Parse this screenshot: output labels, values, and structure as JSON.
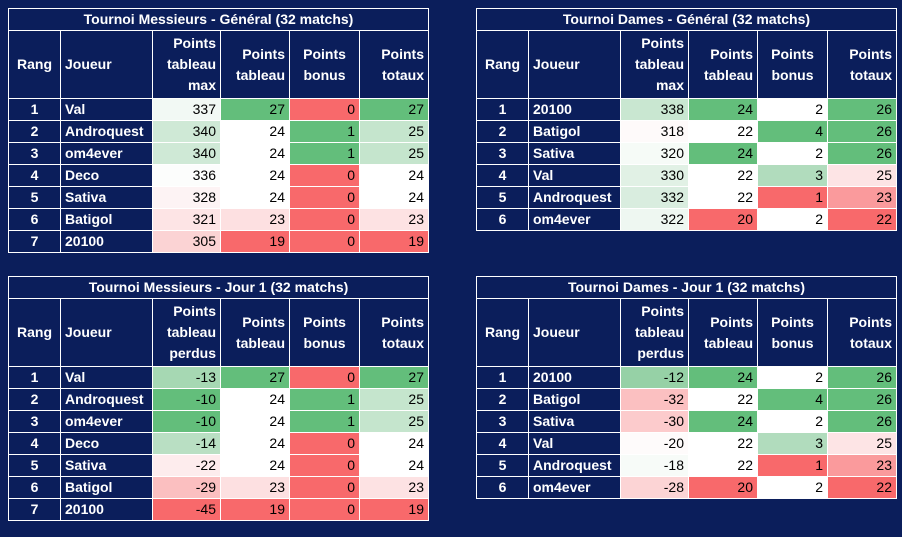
{
  "colors": {
    "background": "#0b1e5b",
    "good_strong": "#63be7b",
    "bad_strong": "#f8696b",
    "neutral": "#ffffff"
  },
  "headers": {
    "rank": "Rang",
    "player": "Joueur",
    "col_a_general": [
      "Points",
      "tableau",
      "max"
    ],
    "col_a_jour": [
      "Points",
      "tableau",
      "perdus"
    ],
    "col_b": [
      "Points",
      "tableau"
    ],
    "col_c": [
      "Points",
      "bonus"
    ],
    "col_d": [
      "Points",
      "totaux"
    ]
  },
  "tables": [
    {
      "id": "m-gen",
      "title": "Tournoi Messieurs - Général (32 matchs)",
      "col_a_kind": "general",
      "rows": [
        {
          "rank": "1",
          "player": "Val",
          "a": "337",
          "b": "27",
          "c": "0",
          "d": "27",
          "ca": "#f2f9f4",
          "cb": "#63be7b",
          "cc": "#f8696b",
          "cd": "#63be7b"
        },
        {
          "rank": "2",
          "player": "Androquest",
          "a": "340",
          "b": "24",
          "c": "1",
          "d": "25",
          "ca": "#cfe9d6",
          "cb": "#ffffff",
          "cc": "#63be7b",
          "cd": "#c5e5cd"
        },
        {
          "rank": "3",
          "player": "om4ever",
          "a": "340",
          "b": "24",
          "c": "1",
          "d": "25",
          "ca": "#cfe9d6",
          "cb": "#ffffff",
          "cc": "#63be7b",
          "cd": "#c5e5cd"
        },
        {
          "rank": "4",
          "player": "Deco",
          "a": "336",
          "b": "24",
          "c": "0",
          "d": "24",
          "ca": "#fcfdfc",
          "cb": "#ffffff",
          "cc": "#f8696b",
          "cd": "#ffffff"
        },
        {
          "rank": "5",
          "player": "Sativa",
          "a": "328",
          "b": "24",
          "c": "0",
          "d": "24",
          "ca": "#fdf3f4",
          "cb": "#ffffff",
          "cc": "#f8696b",
          "cd": "#ffffff"
        },
        {
          "rank": "6",
          "player": "Batigol",
          "a": "321",
          "b": "23",
          "c": "0",
          "d": "23",
          "ca": "#fde4e5",
          "cb": "#fde0e1",
          "cc": "#f8696b",
          "cd": "#fde2e3"
        },
        {
          "rank": "7",
          "player": "20100",
          "a": "305",
          "b": "19",
          "c": "0",
          "d": "19",
          "ca": "#fbd3d4",
          "cb": "#f8696b",
          "cc": "#f8696b",
          "cd": "#f8696b"
        }
      ]
    },
    {
      "id": "d-gen",
      "title": "Tournoi Dames - Général (32 matchs)",
      "col_a_kind": "general",
      "rows": [
        {
          "rank": "1",
          "player": "20100",
          "a": "338",
          "b": "24",
          "c": "2",
          "d": "26",
          "ca": "#c9e7d1",
          "cb": "#63be7b",
          "cc": "#ffffff",
          "cd": "#63be7b"
        },
        {
          "rank": "2",
          "player": "Batigol",
          "a": "318",
          "b": "22",
          "c": "4",
          "d": "26",
          "ca": "#fefafa",
          "cb": "#ffffff",
          "cc": "#63be7b",
          "cd": "#63be7b"
        },
        {
          "rank": "3",
          "player": "Sativa",
          "a": "320",
          "b": "24",
          "c": "2",
          "d": "26",
          "ca": "#f6fbf7",
          "cb": "#63be7b",
          "cc": "#ffffff",
          "cd": "#63be7b"
        },
        {
          "rank": "4",
          "player": "Val",
          "a": "330",
          "b": "22",
          "c": "3",
          "d": "25",
          "ca": "#e1f1e5",
          "cb": "#ffffff",
          "cc": "#b1dcbd",
          "cd": "#fde4e5"
        },
        {
          "rank": "5",
          "player": "Androquest",
          "a": "332",
          "b": "22",
          "c": "1",
          "d": "23",
          "ca": "#d9eddf",
          "cb": "#ffffff",
          "cc": "#f8696b",
          "cd": "#fa9a9c"
        },
        {
          "rank": "6",
          "player": "om4ever",
          "a": "322",
          "b": "20",
          "c": "2",
          "d": "22",
          "ca": "#eef7f1",
          "cb": "#f8696b",
          "cc": "#ffffff",
          "cd": "#f8696b"
        }
      ]
    },
    {
      "id": "m-j1",
      "title": "Tournoi Messieurs - Jour 1 (32 matchs)",
      "col_a_kind": "jour",
      "rows": [
        {
          "rank": "1",
          "player": "Val",
          "a": "-13",
          "b": "27",
          "c": "0",
          "d": "27",
          "ca": "#a6d8b3",
          "cb": "#63be7b",
          "cc": "#f8696b",
          "cd": "#63be7b"
        },
        {
          "rank": "2",
          "player": "Androquest",
          "a": "-10",
          "b": "24",
          "c": "1",
          "d": "25",
          "ca": "#63be7b",
          "cb": "#ffffff",
          "cc": "#63be7b",
          "cd": "#c5e5cd"
        },
        {
          "rank": "3",
          "player": "om4ever",
          "a": "-10",
          "b": "24",
          "c": "1",
          "d": "25",
          "ca": "#63be7b",
          "cb": "#ffffff",
          "cc": "#63be7b",
          "cd": "#c5e5cd"
        },
        {
          "rank": "4",
          "player": "Deco",
          "a": "-14",
          "b": "24",
          "c": "0",
          "d": "24",
          "ca": "#b9dfc3",
          "cb": "#ffffff",
          "cc": "#f8696b",
          "cd": "#ffffff"
        },
        {
          "rank": "5",
          "player": "Sativa",
          "a": "-22",
          "b": "24",
          "c": "0",
          "d": "24",
          "ca": "#fdeced",
          "cb": "#ffffff",
          "cc": "#f8696b",
          "cd": "#ffffff"
        },
        {
          "rank": "6",
          "player": "Batigol",
          "a": "-29",
          "b": "23",
          "c": "0",
          "d": "23",
          "ca": "#fbbfc0",
          "cb": "#fde0e1",
          "cc": "#f8696b",
          "cd": "#fde2e3"
        },
        {
          "rank": "7",
          "player": "20100",
          "a": "-45",
          "b": "19",
          "c": "0",
          "d": "19",
          "ca": "#f8696b",
          "cb": "#f8696b",
          "cc": "#f8696b",
          "cd": "#f8696b"
        }
      ]
    },
    {
      "id": "d-j1",
      "title": "Tournoi Dames - Jour 1 (32 matchs)",
      "col_a_kind": "jour",
      "rows": [
        {
          "rank": "1",
          "player": "20100",
          "a": "-12",
          "b": "24",
          "c": "2",
          "d": "26",
          "ca": "#96d1a6",
          "cb": "#63be7b",
          "cc": "#ffffff",
          "cd": "#63be7b"
        },
        {
          "rank": "2",
          "player": "Batigol",
          "a": "-32",
          "b": "22",
          "c": "4",
          "d": "26",
          "ca": "#fbc0c1",
          "cb": "#ffffff",
          "cc": "#63be7b",
          "cd": "#63be7b"
        },
        {
          "rank": "3",
          "player": "Sativa",
          "a": "-30",
          "b": "24",
          "c": "2",
          "d": "26",
          "ca": "#fccbcc",
          "cb": "#63be7b",
          "cc": "#ffffff",
          "cd": "#63be7b"
        },
        {
          "rank": "4",
          "player": "Val",
          "a": "-20",
          "b": "22",
          "c": "3",
          "d": "25",
          "ca": "#fefbfb",
          "cb": "#ffffff",
          "cc": "#b1dcbd",
          "cd": "#fde4e5"
        },
        {
          "rank": "5",
          "player": "Androquest",
          "a": "-18",
          "b": "22",
          "c": "1",
          "d": "23",
          "ca": "#f7fbf8",
          "cb": "#ffffff",
          "cc": "#f8696b",
          "cd": "#fa9a9c"
        },
        {
          "rank": "6",
          "player": "om4ever",
          "a": "-28",
          "b": "20",
          "c": "2",
          "d": "22",
          "ca": "#fcd4d5",
          "cb": "#f8696b",
          "cc": "#ffffff",
          "cd": "#f8696b"
        }
      ]
    }
  ]
}
